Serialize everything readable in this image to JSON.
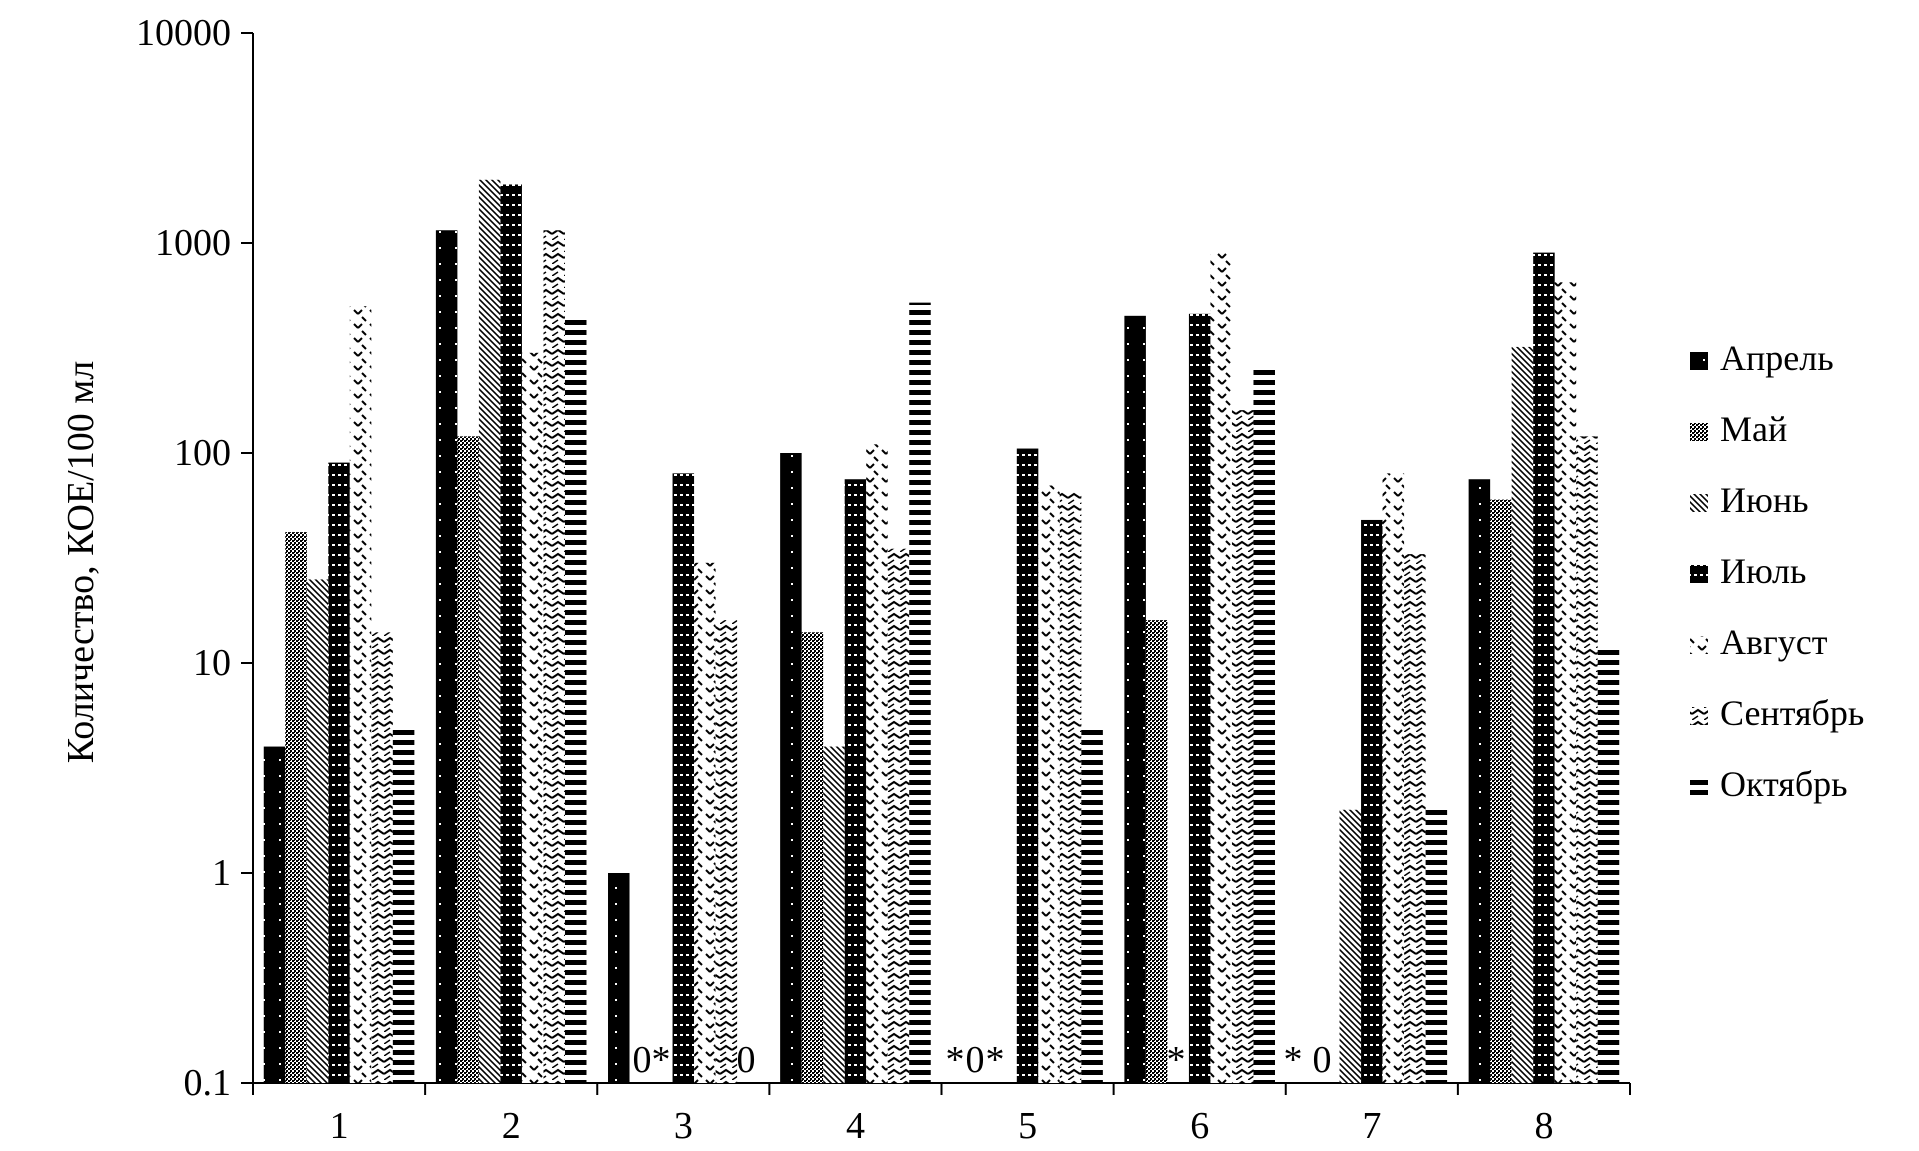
{
  "chart_data": {
    "type": "bar",
    "scale": "log",
    "title": "",
    "xlabel": "",
    "ylabel": "Количество, КОЕ/100 мл",
    "ylim": [
      0.1,
      10000
    ],
    "yticks": [
      "0.1",
      "1",
      "10",
      "100",
      "1000",
      "10000"
    ],
    "categories": [
      "1",
      "2",
      "3",
      "4",
      "5",
      "6",
      "7",
      "8"
    ],
    "grid": false,
    "legend_position": "right",
    "series": [
      {
        "name": "Апрель",
        "values": [
          4,
          1150,
          1,
          100,
          null,
          450,
          null,
          75
        ]
      },
      {
        "name": "Май",
        "values": [
          42,
          120,
          null,
          14,
          null,
          16,
          null,
          60
        ]
      },
      {
        "name": "Июнь",
        "values": [
          25,
          2000,
          null,
          4,
          null,
          null,
          2,
          320
        ]
      },
      {
        "name": "Июль",
        "values": [
          90,
          1900,
          80,
          75,
          105,
          460,
          48,
          900
        ]
      },
      {
        "name": "Август",
        "values": [
          500,
          300,
          30,
          110,
          70,
          900,
          80,
          650
        ]
      },
      {
        "name": "Сентябрь",
        "values": [
          14,
          1150,
          16,
          35,
          65,
          160,
          33,
          120
        ]
      },
      {
        "name": "Октябрь",
        "values": [
          5,
          450,
          null,
          520,
          5,
          260,
          2,
          12
        ]
      }
    ],
    "annotations": [
      {
        "category": "3",
        "text": "0"
      },
      {
        "category": "3",
        "text": "*"
      },
      {
        "category": "3",
        "text": "0"
      },
      {
        "category": "5",
        "text": "*"
      },
      {
        "category": "5",
        "text": "0"
      },
      {
        "category": "5",
        "text": "*"
      },
      {
        "category": "6",
        "text": "*"
      },
      {
        "category": "7",
        "text": "*"
      },
      {
        "category": "7",
        "text": "0"
      }
    ]
  }
}
